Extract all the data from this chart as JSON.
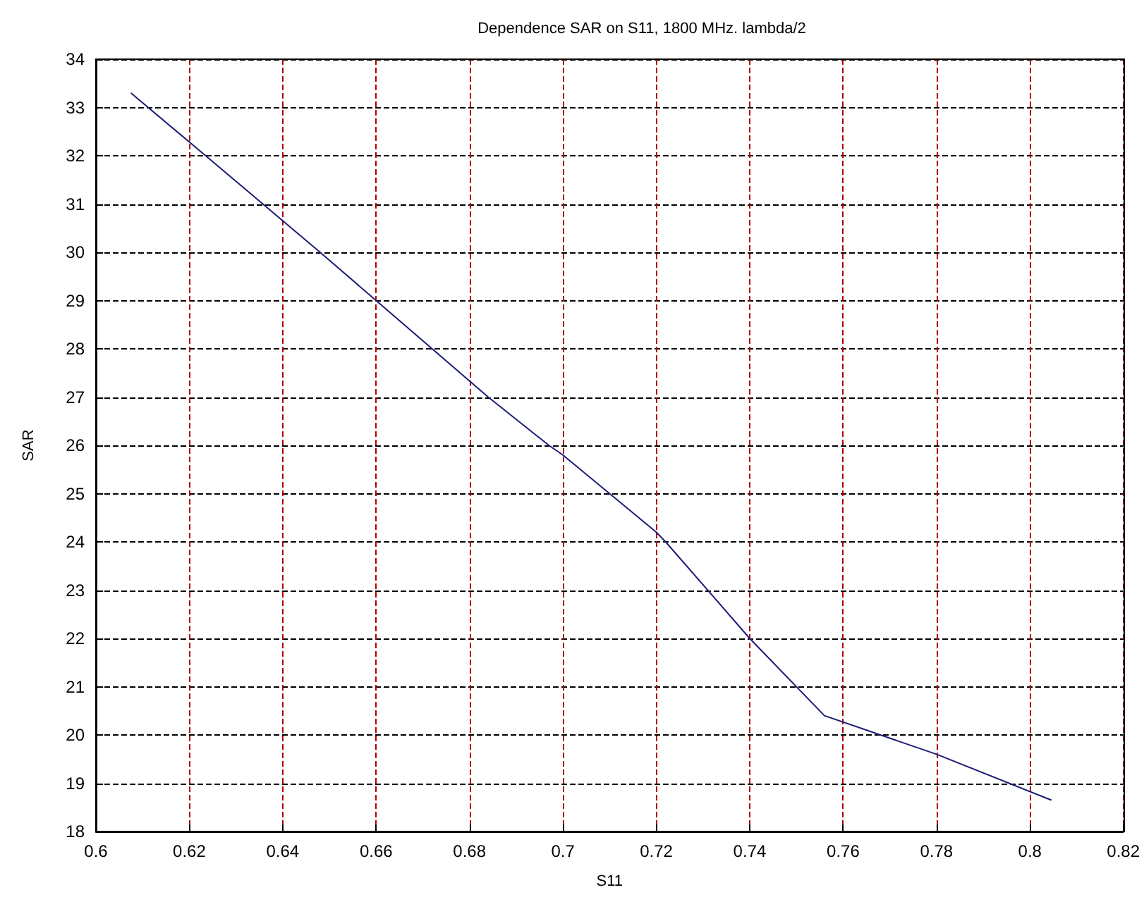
{
  "chart_data": {
    "type": "line",
    "title": "Dependence SAR on S11, 1800 MHz. lambda/2",
    "xlabel": "S11",
    "ylabel": "SAR",
    "x": [
      0.6075,
      0.6235,
      0.648,
      0.66,
      0.684,
      0.697,
      0.7,
      0.72,
      0.722,
      0.74,
      0.756,
      0.78,
      0.8046
    ],
    "series": [
      {
        "color": "#1c1c78",
        "values": [
          33.3,
          32,
          30,
          29,
          27,
          26,
          25.8,
          24.2,
          24,
          22,
          20.4,
          19.6,
          18.65
        ]
      }
    ],
    "xlim": [
      0.6,
      0.82
    ],
    "xticks": [
      0.6,
      0.62,
      0.64,
      0.66,
      0.68,
      0.7,
      0.72,
      0.74,
      0.76,
      0.78,
      0.8,
      0.82
    ],
    "ylim": [
      18,
      34
    ],
    "yticks": [
      18,
      19,
      20,
      21,
      22,
      23,
      24,
      25,
      26,
      27,
      28,
      29,
      30,
      31,
      32,
      33,
      34
    ],
    "grid": true,
    "marker": "none",
    "line_style": "solid"
  }
}
